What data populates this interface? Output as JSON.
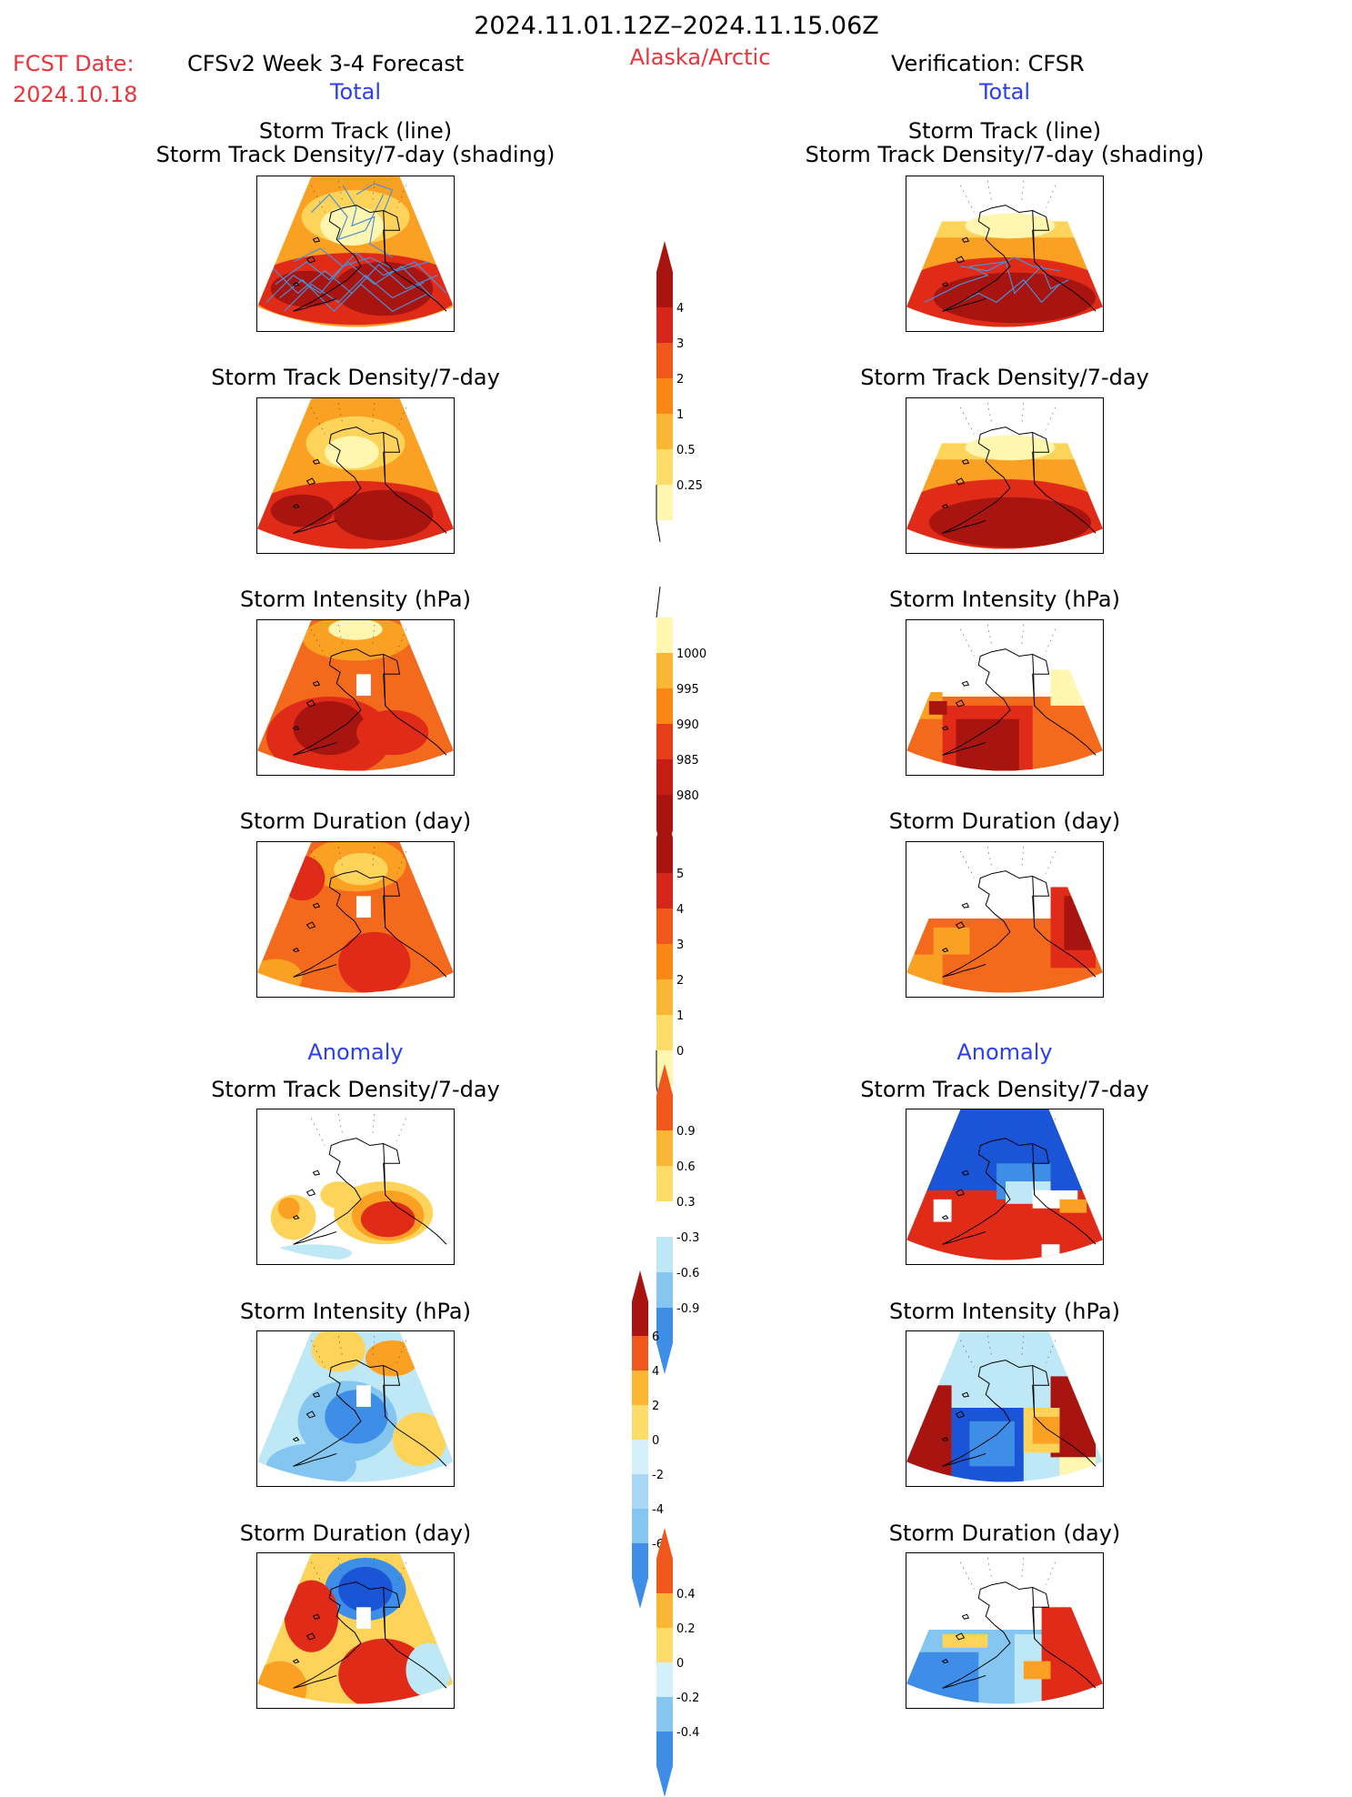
{
  "header": {
    "period": "2024.11.01.12Z–2024.11.15.06Z",
    "fcst_label": "FCST Date:",
    "fcst_date": "2024.10.18",
    "model_title": "CFSv2 Week 3-4 Forecast",
    "region": "Alaska/Arctic",
    "verification": "Verification: CFSR"
  },
  "sections": {
    "total": "Total",
    "anomaly": "Anomaly"
  },
  "panel_titles": {
    "track_line": "Storm Track (line)",
    "track_shading": "Storm Track Density/7-day (shading)",
    "density": "Storm Track Density/7-day",
    "intensity": "Storm Intensity (hPa)",
    "duration": "Storm Duration (day)"
  },
  "colors": {
    "title_red": "#e8343a",
    "section_blue": "#2b3ff0",
    "track_line": "#4a8fd8",
    "white": "#ffffff",
    "light_yellow": "#fff7b0",
    "yellow": "#fdd35a",
    "orange": "#faa023",
    "dark_orange": "#f46a1c",
    "red": "#e02b18",
    "dark_red": "#a8140f",
    "light_blue": "#bfe8f7",
    "mid_blue": "#84c6f0",
    "blue": "#3e8ee8",
    "dark_blue": "#1a55d8"
  },
  "colorbars": {
    "density_total": {
      "labels": [
        "0.25",
        "0.5",
        "1",
        "2",
        "3",
        "4"
      ],
      "colors": [
        "#fff7b0",
        "#fddc6a",
        "#fbb634",
        "#f98716",
        "#f0571c",
        "#d6261a",
        "#a8140f"
      ],
      "ends": [
        "low-open",
        "high-arrow"
      ]
    },
    "intensity_total": {
      "labels": [
        "1000",
        "995",
        "990",
        "985",
        "980"
      ],
      "colors": [
        "#fff7b0",
        "#fbb634",
        "#f98716",
        "#e63d1a",
        "#c41d14",
        "#a8140f"
      ],
      "ends": [
        "top-open",
        "bottom-arrow"
      ]
    },
    "duration_total": {
      "labels": [
        "0",
        "1",
        "2",
        "3",
        "4",
        "5"
      ],
      "colors": [
        "#fff7b0",
        "#fddc6a",
        "#fbb634",
        "#f98716",
        "#f0571c",
        "#d6261a",
        "#a8140f"
      ],
      "ends": [
        "low-open",
        "high-arrow"
      ]
    },
    "density_anom": {
      "labels": [
        "-0.9",
        "-0.6",
        "-0.3",
        "0.3",
        "0.6",
        "0.9"
      ],
      "colors": [
        "#3e8ee8",
        "#84c6f0",
        "#bfe8f7",
        "#ffffff",
        "#fddc6a",
        "#fbb634",
        "#f0571c"
      ],
      "ends": [
        "low-arrow",
        "high-arrow"
      ]
    },
    "intensity_anom": {
      "labels": [
        "-6",
        "-4",
        "-2",
        "0",
        "2",
        "4",
        "6"
      ],
      "colors": [
        "#3e8ee8",
        "#84c6f0",
        "#a9d8f5",
        "#d6f0fb",
        "#fddc6a",
        "#fbb634",
        "#f0571c",
        "#a8140f"
      ],
      "ends": [
        "low-arrow",
        "high-arrow"
      ]
    },
    "duration_anom": {
      "labels": [
        "-0.4",
        "-0.2",
        "0",
        "0.2",
        "0.4"
      ],
      "colors": [
        "#3e8ee8",
        "#84c6f0",
        "#d6f0fb",
        "#fddc6a",
        "#fbb634",
        "#f0571c"
      ],
      "ends": [
        "low-arrow",
        "high-arrow"
      ]
    }
  }
}
